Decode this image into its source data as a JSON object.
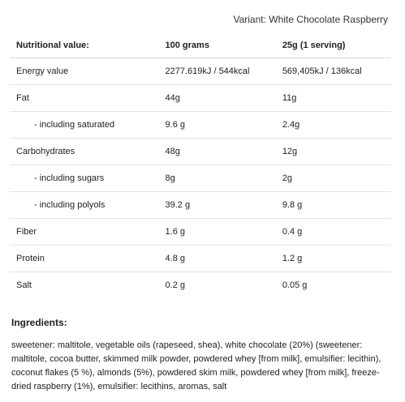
{
  "variant": "Variant: White Chocolate Raspberry",
  "table": {
    "headers": [
      "Nutritional value:",
      "100 grams",
      "25g (1 serving)"
    ],
    "rows": [
      {
        "label": "Energy value",
        "per100": "2277.619kJ / 544kcal",
        "serving": "569,405kJ / 136kcal"
      },
      {
        "label": "Fat",
        "per100": "44g",
        "serving": "11g"
      },
      {
        "label": "- including saturated",
        "per100": "9.6 g",
        "serving": "2.4g"
      },
      {
        "label": "Carbohydrates",
        "per100": "48g",
        "serving": "12g"
      },
      {
        "label": "- including sugars",
        "per100": "8g",
        "serving": "2g"
      },
      {
        "label": "- including polyols",
        "per100": "39.2 g",
        "serving": "9.8 g"
      },
      {
        "label": "Fiber",
        "per100": "1.6 g",
        "serving": "0.4 g"
      },
      {
        "label": "Protein",
        "per100": "4.8 g",
        "serving": "1.2 g"
      },
      {
        "label": "Salt",
        "per100": "0.2 g",
        "serving": "0.05 g"
      }
    ]
  },
  "ingredients": {
    "title": "Ingredients:",
    "text": "sweetener: maltitole, vegetable oils (rapeseed, shea), white chocolate (20%) (sweetener: maltitole, cocoa butter, skimmed milk powder, powdered whey [from milk], emulsifier: lecithin), coconut flakes (5 %), almonds (5%), powdered skim milk, powdered whey [from milk], freeze-dried raspberry (1%), emulsifier: lecithins, aromas, salt"
  }
}
